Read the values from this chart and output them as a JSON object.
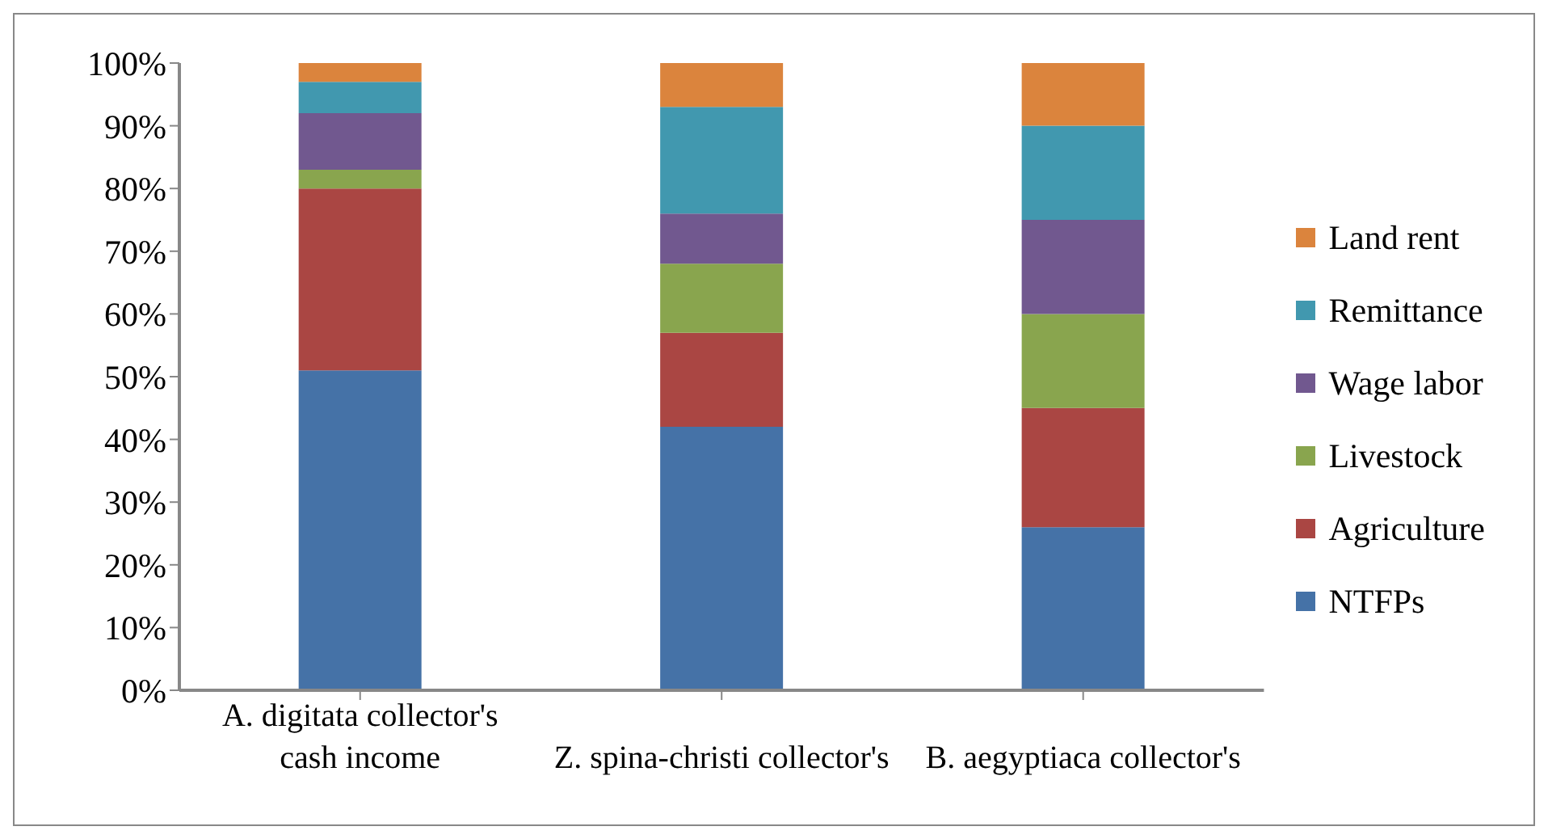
{
  "chart_data": {
    "type": "bar",
    "stacked": true,
    "categories": [
      "A. digitata collector's cash income",
      "Z. spina-christi collector's",
      "B. aegyptiaca collector's"
    ],
    "series": [
      {
        "name": "NTFPs",
        "color": "#4572a7",
        "values": [
          51,
          42,
          26
        ]
      },
      {
        "name": "Agriculture",
        "color": "#aa4643",
        "values": [
          29,
          15,
          19
        ]
      },
      {
        "name": "Livestock",
        "color": "#89a54e",
        "values": [
          3,
          11,
          15
        ]
      },
      {
        "name": "Wage labor",
        "color": "#71588f",
        "values": [
          9,
          8,
          15
        ]
      },
      {
        "name": "Remittance",
        "color": "#4198af",
        "values": [
          5,
          17,
          15
        ]
      },
      {
        "name": "Land rent",
        "color": "#db843d",
        "values": [
          3,
          7,
          10
        ]
      }
    ],
    "ylim": [
      0,
      100
    ],
    "yticks": [
      {
        "value": 0,
        "label": "0%"
      },
      {
        "value": 10,
        "label": "10%"
      },
      {
        "value": 20,
        "label": "20%"
      },
      {
        "value": 30,
        "label": "30%"
      },
      {
        "value": 40,
        "label": "40%"
      },
      {
        "value": 50,
        "label": "50%"
      },
      {
        "value": 60,
        "label": "60%"
      },
      {
        "value": 70,
        "label": "70%"
      },
      {
        "value": 80,
        "label": "80%"
      },
      {
        "value": 90,
        "label": "90%"
      },
      {
        "value": 100,
        "label": "100%"
      }
    ],
    "grid": false,
    "legend": "right"
  }
}
